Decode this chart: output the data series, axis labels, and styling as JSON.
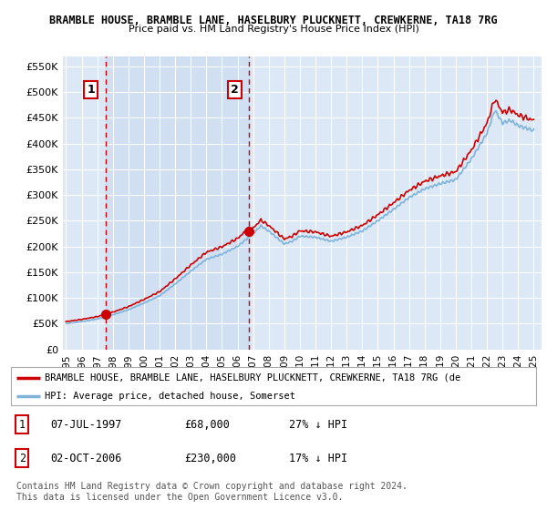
{
  "title": "BRAMBLE HOUSE, BRAMBLE LANE, HASELBURY PLUCKNETT, CREWKERNE, TA18 7RG",
  "subtitle": "Price paid vs. HM Land Registry's House Price Index (HPI)",
  "ylim": [
    0,
    570000
  ],
  "yticks": [
    0,
    50000,
    100000,
    150000,
    200000,
    250000,
    300000,
    350000,
    400000,
    450000,
    500000,
    550000
  ],
  "ytick_labels": [
    "£0",
    "£50K",
    "£100K",
    "£150K",
    "£200K",
    "£250K",
    "£300K",
    "£350K",
    "£400K",
    "£450K",
    "£500K",
    "£550K"
  ],
  "background_color": "#dce8f5",
  "plot_bg_color": "#dce8f5",
  "grid_color": "#ffffff",
  "sale1_year": 1997.54,
  "sale1_price": 68000,
  "sale2_year": 2006.75,
  "sale2_price": 230000,
  "red_line_color": "#cc0000",
  "blue_line_color": "#7fb3d9",
  "sale_dot_color": "#cc0000",
  "vline_color": "#cc0000",
  "shade_color": "#c5d8f0",
  "legend_red_label": "BRAMBLE HOUSE, BRAMBLE LANE, HASELBURY PLUCKNETT, CREWKERNE, TA18 7RG (de",
  "legend_blue_label": "HPI: Average price, detached house, Somerset",
  "table_data": [
    {
      "num": "1",
      "date": "07-JUL-1997",
      "price": "£68,000",
      "hpi": "27% ↓ HPI"
    },
    {
      "num": "2",
      "date": "02-OCT-2006",
      "price": "£230,000",
      "hpi": "17% ↓ HPI"
    }
  ],
  "footer": "Contains HM Land Registry data © Crown copyright and database right 2024.\nThis data is licensed under the Open Government Licence v3.0.",
  "xlim": [
    1994.8,
    2025.5
  ],
  "xtick_years": [
    1995,
    1996,
    1997,
    1998,
    1999,
    2000,
    2001,
    2002,
    2003,
    2004,
    2005,
    2006,
    2007,
    2008,
    2009,
    2010,
    2011,
    2012,
    2013,
    2014,
    2015,
    2016,
    2017,
    2018,
    2019,
    2020,
    2021,
    2022,
    2023,
    2024,
    2025
  ]
}
